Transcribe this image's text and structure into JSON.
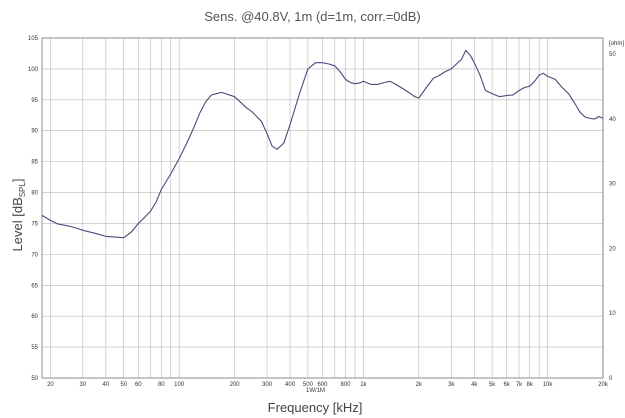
{
  "chart_data": {
    "type": "line",
    "title": "Sens. @40.8V, 1m (d=1m, corr.=0dB)",
    "xlabel": "Frequency [kHz]",
    "ylabel_main": "Level [dB",
    "ylabel_sub": "SPL",
    "ylabel_end": "]",
    "x_scale": "log",
    "xlim": [
      18,
      20000
    ],
    "ylim": [
      50,
      105
    ],
    "grid": true,
    "x_ticks": [
      {
        "v": 20,
        "label": "20"
      },
      {
        "v": 30,
        "label": "30"
      },
      {
        "v": 40,
        "label": "40"
      },
      {
        "v": 50,
        "label": "50"
      },
      {
        "v": 60,
        "label": "60"
      },
      {
        "v": 80,
        "label": "80"
      },
      {
        "v": 100,
        "label": "100"
      },
      {
        "v": 200,
        "label": "200"
      },
      {
        "v": 300,
        "label": "300"
      },
      {
        "v": 400,
        "label": "400"
      },
      {
        "v": 500,
        "label": "500"
      },
      {
        "v": 600,
        "label": "600"
      },
      {
        "v": 800,
        "label": "800"
      },
      {
        "v": 1000,
        "label": "1k"
      },
      {
        "v": 2000,
        "label": "2k"
      },
      {
        "v": 3000,
        "label": "3k"
      },
      {
        "v": 4000,
        "label": "4k"
      },
      {
        "v": 5000,
        "label": "5k"
      },
      {
        "v": 6000,
        "label": "6k"
      },
      {
        "v": 7000,
        "label": "7k"
      },
      {
        "v": 8000,
        "label": "8k"
      },
      {
        "v": 10000,
        "label": "10k"
      },
      {
        "v": 20000,
        "label": "20k"
      }
    ],
    "x_sublabel": {
      "v": 550,
      "label": "1W/1M"
    },
    "y_ticks": [
      "50",
      "55",
      "60",
      "65",
      "70",
      "75",
      "80",
      "85",
      "90",
      "95",
      "100",
      "105"
    ],
    "y2_unit": "[ohm]",
    "y2_ticks": [
      {
        "v": 0,
        "label": "0"
      },
      {
        "v": 10,
        "label": "10"
      },
      {
        "v": 20,
        "label": "20"
      },
      {
        "v": 30,
        "label": "30"
      },
      {
        "v": 40,
        "label": "40"
      },
      {
        "v": 50,
        "label": "50"
      }
    ],
    "y2lim": [
      0,
      52.5
    ],
    "line_color": "#4a4a7a",
    "grid_color": "#b8b8b8",
    "series": [
      {
        "x": [
          18,
          20,
          22,
          25,
          28,
          30,
          35,
          40,
          45,
          50,
          55,
          60,
          65,
          70,
          75,
          80,
          90,
          100,
          110,
          120,
          130,
          140,
          150,
          170,
          200,
          230,
          250,
          280,
          300,
          320,
          340,
          370,
          400,
          450,
          500,
          550,
          600,
          650,
          700,
          750,
          800,
          850,
          900,
          950,
          1000,
          1100,
          1200,
          1300,
          1400,
          1500,
          1600,
          1700,
          1800,
          1900,
          2000,
          2200,
          2400,
          2600,
          2800,
          3000,
          3200,
          3400,
          3600,
          3800,
          4000,
          4300,
          4600,
          5000,
          5500,
          6000,
          6500,
          7000,
          7500,
          8000,
          8500,
          9000,
          9500,
          10000,
          11000,
          12000,
          13000,
          14000,
          15000,
          16000,
          17000,
          18000,
          19000,
          20000
        ],
        "y": [
          76.3,
          75.5,
          74.9,
          74.6,
          74.2,
          73.9,
          73.4,
          72.9,
          72.8,
          72.7,
          73.6,
          75.0,
          76.0,
          77.0,
          78.5,
          80.5,
          83.0,
          85.5,
          88.0,
          90.5,
          93.0,
          94.8,
          95.8,
          96.2,
          95.5,
          93.8,
          93.0,
          91.5,
          89.5,
          87.5,
          87.0,
          88.0,
          91.0,
          96.0,
          100.0,
          101.0,
          101.0,
          100.8,
          100.5,
          99.5,
          98.3,
          97.8,
          97.6,
          97.7,
          98.0,
          97.5,
          97.5,
          97.8,
          98.0,
          97.5,
          97.0,
          96.5,
          96.0,
          95.5,
          95.3,
          97.0,
          98.5,
          99.0,
          99.6,
          100.0,
          100.8,
          101.5,
          103.0,
          102.2,
          101.0,
          99.0,
          96.5,
          96.0,
          95.5,
          95.7,
          95.8,
          96.5,
          97.0,
          97.2,
          98.0,
          99.0,
          99.3,
          98.8,
          98.3,
          97.0,
          96.0,
          94.5,
          93.0,
          92.2,
          92.0,
          91.9,
          92.3,
          92.0
        ]
      }
    ]
  }
}
